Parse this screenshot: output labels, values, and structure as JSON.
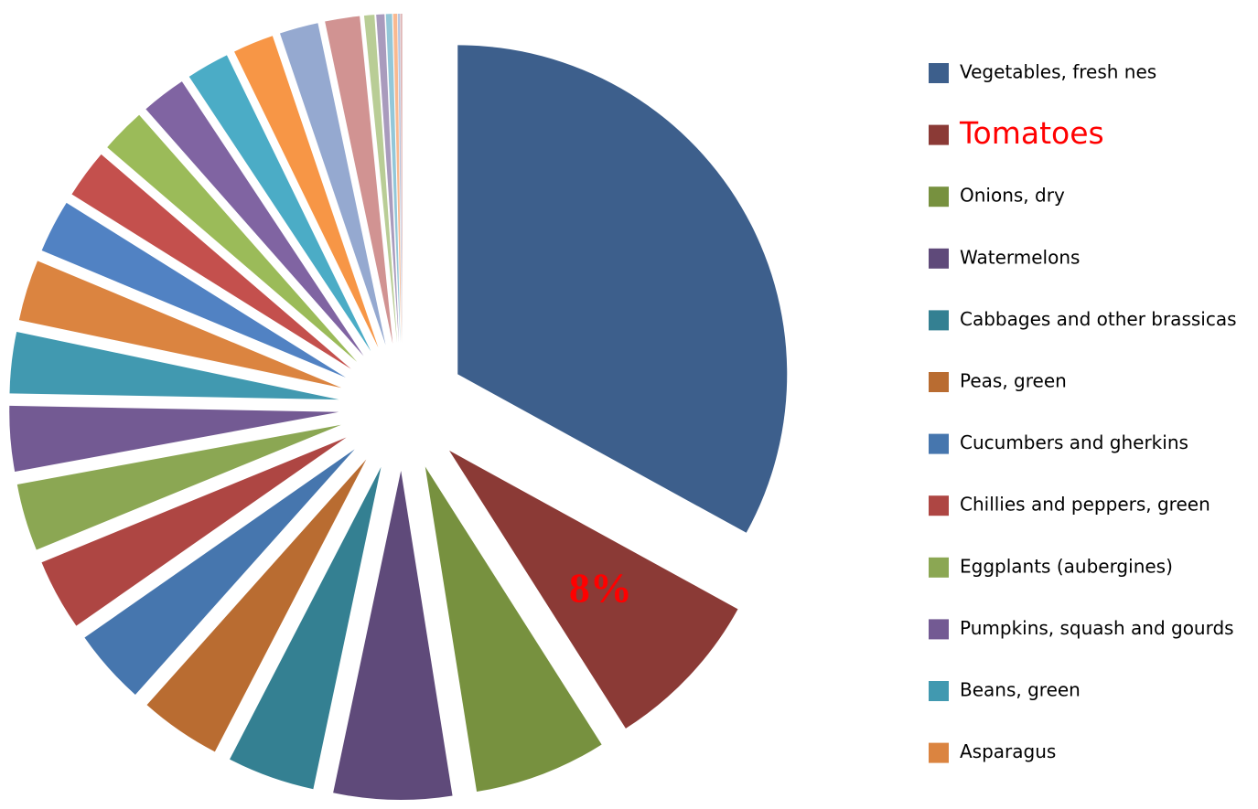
{
  "chart_data": {
    "type": "pie",
    "categories": [
      "Vegetables, fresh nes",
      "Tomatoes",
      "Onions, dry",
      "Watermelons",
      "Cabbages and other brassicas",
      "Peas, green",
      "Cucumbers and gherkins",
      "Chillies and peppers, green",
      "Eggplants (aubergines)",
      "Pumpkins, squash and gourds",
      "Beans, green",
      "Asparagus",
      null,
      null,
      null,
      null,
      null,
      null,
      null,
      null,
      null,
      null,
      null,
      null,
      null,
      null
    ],
    "values": [
      33,
      8,
      6.5,
      5.8,
      4.3,
      4,
      3.7,
      3.5,
      3.3,
      3.2,
      3,
      3,
      2.6,
      2.4,
      2.2,
      2.2,
      2.1,
      2,
      1.9,
      1.7,
      0.5,
      0.4,
      0.3,
      0.2,
      0.1,
      0.1
    ],
    "value_labels": [
      null,
      "8%",
      null,
      null,
      null,
      null,
      null,
      null,
      null,
      null,
      null,
      null,
      null,
      null,
      null,
      null,
      null,
      null,
      null,
      null,
      null,
      null,
      null,
      null,
      null,
      null
    ],
    "colors": [
      "#3d5f8c",
      "#8b3a36",
      "#77913f",
      "#5f4a7a",
      "#348092",
      "#b96c31",
      "#4676ae",
      "#ae4643",
      "#8ba753",
      "#735a93",
      "#4199b0",
      "#db8440",
      "#5182c3",
      "#c4504d",
      "#9bbb59",
      "#8064a2",
      "#4bacc6",
      "#f79646",
      "#95a9d0",
      "#d19392",
      "#b9cd96",
      "#a99bbd",
      "#93c7d8",
      "#f9b990",
      "#b8c6e0",
      "#e0b8b8"
    ],
    "highlight_index": 1,
    "highlight_color": "#ff0000",
    "legend": "right"
  }
}
